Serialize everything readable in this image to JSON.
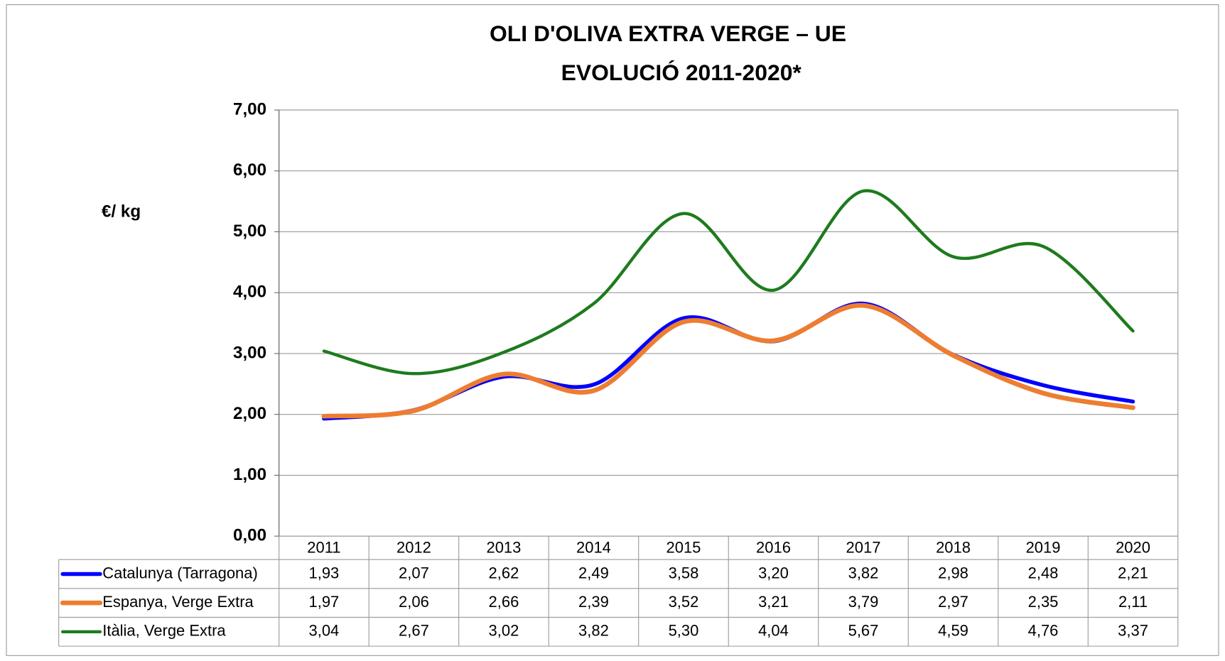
{
  "chart_data": {
    "type": "line",
    "title": "OLI D'OLIVA EXTRA VERGE – UE",
    "subtitle": "EVOLUCIÓ 2011-2020*",
    "y_label": "€/ kg",
    "categories": [
      "2011",
      "2012",
      "2013",
      "2014",
      "2015",
      "2016",
      "2017",
      "2018",
      "2019",
      "2020"
    ],
    "series": [
      {
        "name": "Catalunya (Tarragona)",
        "color": "#0000ff",
        "values": [
          1.93,
          2.07,
          2.62,
          2.49,
          3.58,
          3.2,
          3.82,
          2.98,
          2.48,
          2.21
        ],
        "value_labels": [
          "1,93",
          "2,07",
          "2,62",
          "2,49",
          "3,58",
          "3,20",
          "3,82",
          "2,98",
          "2,48",
          "2,21"
        ]
      },
      {
        "name": "Espanya, Verge Extra",
        "color": "#ed7d31",
        "values": [
          1.97,
          2.06,
          2.66,
          2.39,
          3.52,
          3.21,
          3.79,
          2.97,
          2.35,
          2.11
        ],
        "value_labels": [
          "1,97",
          "2,06",
          "2,66",
          "2,39",
          "3,52",
          "3,21",
          "3,79",
          "2,97",
          "2,35",
          "2,11"
        ]
      },
      {
        "name": "Itàlia, Verge Extra",
        "color": "#1e7b1e",
        "values": [
          3.04,
          2.67,
          3.02,
          3.82,
          5.3,
          4.04,
          5.67,
          4.59,
          4.76,
          3.37
        ],
        "value_labels": [
          "3,04",
          "2,67",
          "3,02",
          "3,82",
          "5,30",
          "4,04",
          "5,67",
          "4,59",
          "4,76",
          "3,37"
        ]
      }
    ],
    "ylim": [
      0,
      7
    ],
    "yticks": [
      {
        "value": 0,
        "label": "0,00"
      },
      {
        "value": 1,
        "label": "1,00"
      },
      {
        "value": 2,
        "label": "2,00"
      },
      {
        "value": 3,
        "label": "3,00"
      },
      {
        "value": 4,
        "label": "4,00"
      },
      {
        "value": 5,
        "label": "5,00"
      },
      {
        "value": 6,
        "label": "6,00"
      },
      {
        "value": 7,
        "label": "7,00"
      }
    ],
    "grid": true,
    "smooth": true,
    "data_table": true
  }
}
